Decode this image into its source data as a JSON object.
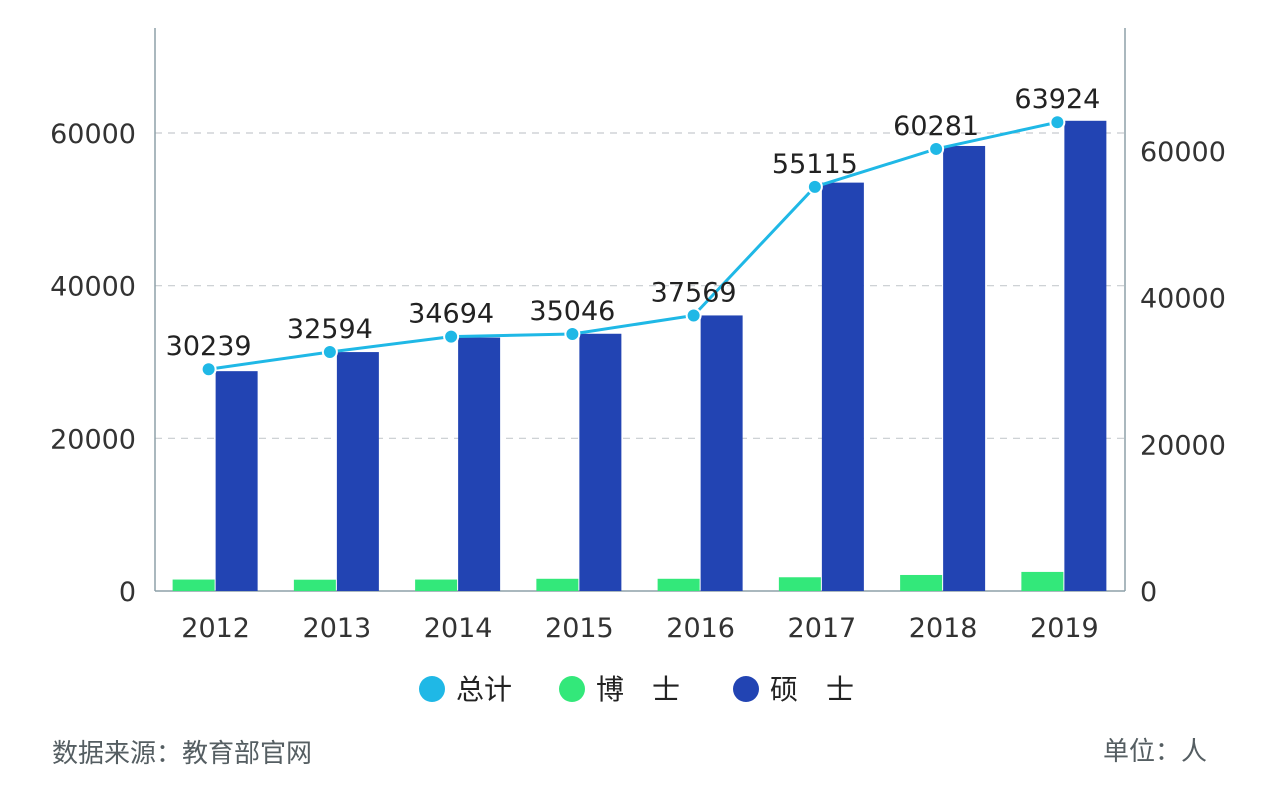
{
  "chart_data": {
    "type": "bar",
    "categories": [
      "2012",
      "2013",
      "2014",
      "2015",
      "2016",
      "2017",
      "2018",
      "2019"
    ],
    "series": [
      {
        "name": "总计",
        "type": "line",
        "axis": "right",
        "color": "#1fb8e6",
        "values": [
          30239,
          32594,
          34694,
          35046,
          37569,
          55115,
          60281,
          63924
        ]
      },
      {
        "name": "博　士",
        "type": "bar",
        "axis": "left",
        "color": "#33e87a",
        "values": [
          1500,
          1480,
          1500,
          1600,
          1600,
          1800,
          2100,
          2500
        ]
      },
      {
        "name": "硕　士",
        "type": "bar",
        "axis": "left",
        "color": "#2244b3",
        "values": [
          28800,
          31300,
          33200,
          33700,
          36100,
          53500,
          58300,
          61600
        ]
      }
    ],
    "yaxis_left": {
      "min": 0,
      "max": 72000,
      "ticks": [
        "0",
        "20000",
        "40000",
        "60000"
      ]
    },
    "yaxis_right": {
      "min": 0,
      "max": 76500,
      "ticks": [
        "0",
        "20000",
        "40000",
        "60000"
      ]
    },
    "grid": true,
    "legend": "bottom-center"
  },
  "footer": {
    "source": "数据来源：教育部官网",
    "unit": "单位：人"
  }
}
